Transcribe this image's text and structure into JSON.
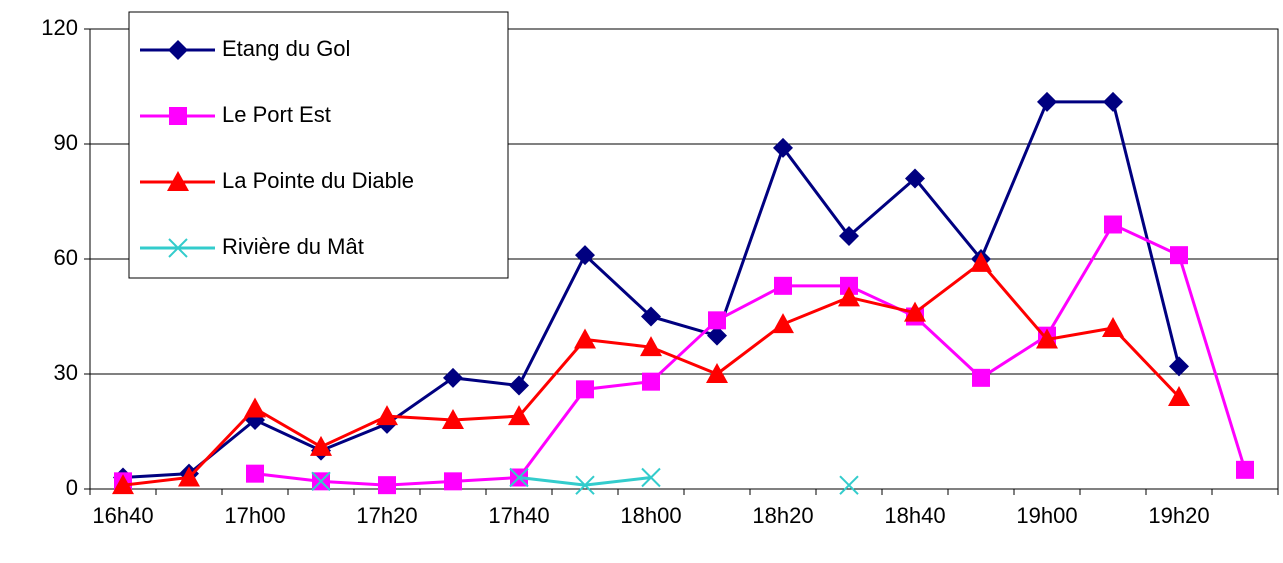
{
  "chart_data": {
    "type": "line",
    "categories": [
      "16h40",
      null,
      "17h00",
      null,
      "17h20",
      null,
      "17h40",
      null,
      "18h00",
      null,
      "18h20",
      null,
      "18h40",
      null,
      "19h00",
      null,
      "19h20",
      null
    ],
    "series": [
      {
        "name": "Etang du Gol",
        "color": "#000080",
        "marker": "diamond",
        "values": [
          3,
          4,
          18,
          10,
          17,
          29,
          27,
          61,
          45,
          40,
          89,
          66,
          81,
          60,
          101,
          101,
          32,
          null
        ]
      },
      {
        "name": "Le Port Est",
        "color": "#ff00ff",
        "marker": "square",
        "values": [
          2,
          null,
          4,
          2,
          1,
          2,
          3,
          26,
          28,
          44,
          53,
          53,
          45,
          29,
          40,
          69,
          61,
          5
        ]
      },
      {
        "name": "La Pointe du Diable",
        "color": "#ff0000",
        "marker": "triangle",
        "values": [
          1,
          3,
          21,
          11,
          19,
          18,
          19,
          39,
          37,
          30,
          43,
          50,
          46,
          59,
          39,
          42,
          24,
          null
        ]
      },
      {
        "name": "Rivière du Mât",
        "color": "#33cccc",
        "marker": "x",
        "values": [
          null,
          null,
          null,
          2,
          null,
          null,
          3,
          1,
          3,
          null,
          null,
          1,
          null,
          null,
          null,
          null,
          null,
          null
        ]
      }
    ],
    "ylim": [
      0,
      120
    ],
    "yticks": [
      0,
      30,
      60,
      90,
      120
    ],
    "grid": true,
    "legend": "top-left"
  }
}
